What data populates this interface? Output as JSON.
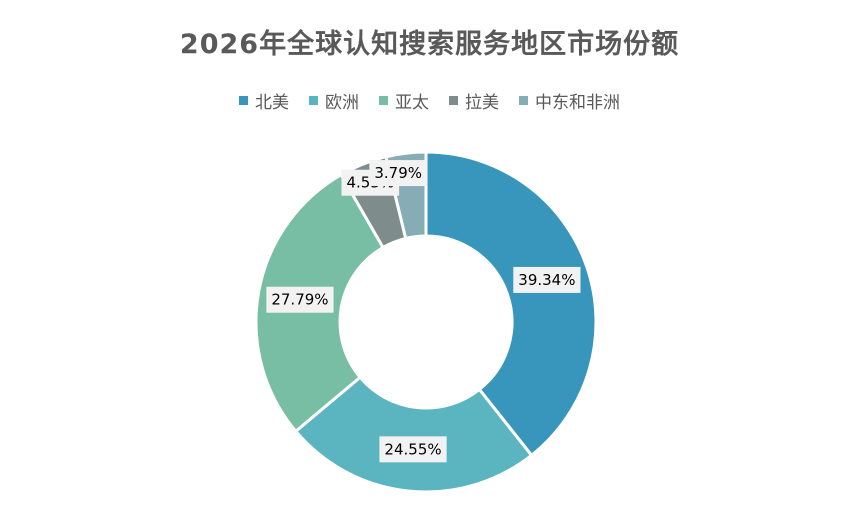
{
  "chart_data": {
    "type": "pie",
    "variant": "doughnut",
    "title": "2026年全球认知搜索服务地区市场份额",
    "categories": [
      "北美",
      "欧洲",
      "亚太",
      "拉美",
      "中东和非洲"
    ],
    "values": [
      39.34,
      24.55,
      27.79,
      4.53,
      3.79
    ],
    "labels": [
      "39.34%",
      "24.55%",
      "27.79%",
      "4.53%",
      "3.79%"
    ],
    "colors": [
      "#3896BC",
      "#5BB5C1",
      "#77BEA4",
      "#7F8C8C",
      "#86ACB6"
    ],
    "legend_position": "top",
    "data_label_background": "#F2F2F2"
  }
}
